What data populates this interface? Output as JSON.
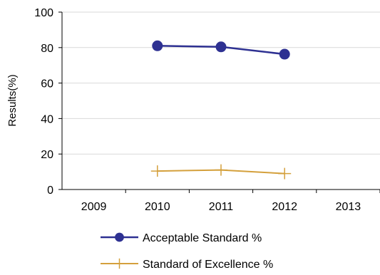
{
  "chart_data": {
    "type": "line",
    "title": "",
    "xlabel": "",
    "ylabel": "Results(%)",
    "categories": [
      "2009",
      "2010",
      "2011",
      "2012",
      "2013"
    ],
    "ylim": [
      0,
      100
    ],
    "yticks": [
      0,
      20,
      40,
      60,
      80,
      100
    ],
    "grid": "horizontal",
    "legend_position": "bottom",
    "series": [
      {
        "name": "Acceptable Standard %",
        "color": "#2e3192",
        "marker": "circle",
        "values": [
          null,
          81.0,
          80.4,
          76.3,
          null
        ]
      },
      {
        "name": "Standard of Excellence %",
        "color": "#d4a03c",
        "marker": "plus",
        "values": [
          null,
          10.4,
          11.0,
          9.0,
          null
        ]
      }
    ]
  }
}
